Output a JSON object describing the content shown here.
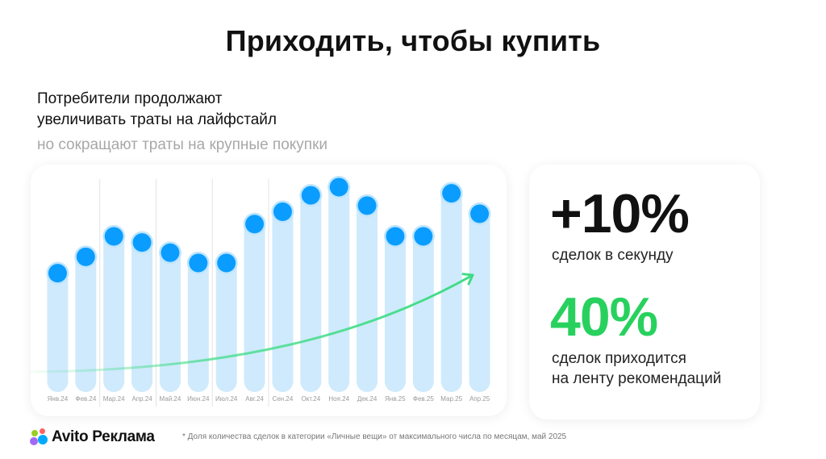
{
  "title": "Приходить, чтобы купить",
  "subtitle_line1": "Потребители продолжают",
  "subtitle_line2": "увеличивать траты на лайфстайл",
  "subtitle_gray": "но сокращают траты на крупные покупки",
  "stats": {
    "value1": "+10%",
    "label1": "сделок в секунду",
    "value2": "40%",
    "label2_line1": "сделок приходится",
    "label2_line2": "на ленту рекомендаций"
  },
  "logo": {
    "text": "Avito Реклама",
    "dot_colors": [
      "#00aaff",
      "#97cf26",
      "#a169f7",
      "#ff6163"
    ]
  },
  "footnote": "* Доля количества сделок в категории «Личные вещи» от максимального числа по месяцам, май 2025",
  "colors": {
    "accent_blue": "#0a9dff",
    "bar_fill": "#cfeafc",
    "trend_green": "#3ddc84",
    "green_text": "#28d15e"
  },
  "chart_data": {
    "type": "bar",
    "categories": [
      "Янв.24",
      "Фев.24",
      "Мар.24",
      "Апр.24",
      "Май.24",
      "Июн.24",
      "Июл.24",
      "Авг.24",
      "Сен.24",
      "Окт.24",
      "Ноя.24",
      "Дек.24",
      "Янв.25",
      "Фев.25",
      "Мар.25",
      "Апр.25"
    ],
    "values": [
      58,
      66,
      76,
      73,
      68,
      63,
      63,
      82,
      88,
      96,
      100,
      91,
      76,
      76,
      97,
      87
    ],
    "separators_after": [
      1,
      3,
      5,
      7
    ],
    "trend_arrow": true,
    "ylim": [
      0,
      100
    ],
    "grid": false
  }
}
